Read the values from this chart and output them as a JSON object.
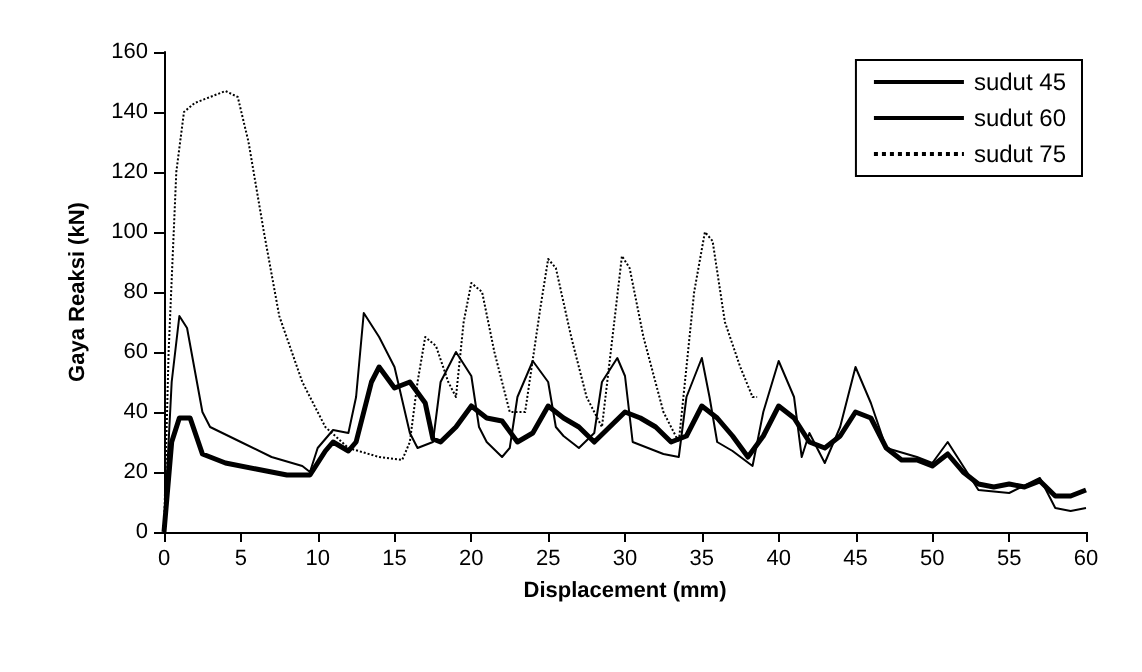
{
  "chart_data": {
    "type": "line",
    "xlabel": "Displacement (mm)",
    "ylabel": "Gaya Reaksi (kN)",
    "xlim": [
      0,
      60
    ],
    "xticks": [
      0,
      5,
      10,
      15,
      20,
      25,
      30,
      35,
      40,
      45,
      50,
      55,
      60
    ],
    "ylim": [
      0,
      160
    ],
    "yticks": [
      0,
      20,
      40,
      60,
      80,
      100,
      120,
      140,
      160
    ],
    "grid": false,
    "legend": "top right",
    "marker": "none",
    "series": [
      {
        "name": "sudut 45",
        "color": "#000000",
        "line_style": "solid",
        "x": [
          0,
          0.5,
          1,
          1.7,
          2.5,
          4,
          6,
          8,
          9.5,
          10.5,
          11,
          12,
          12.5,
          13.5,
          14,
          15,
          16,
          17,
          17.5,
          18,
          19,
          20,
          21,
          22,
          23,
          24,
          25,
          26,
          27,
          28,
          29,
          30,
          31,
          32,
          33,
          34,
          35,
          36,
          37,
          38,
          39,
          40,
          41,
          42,
          43,
          44,
          45,
          46,
          47,
          48,
          49,
          50,
          51,
          52,
          53,
          54,
          55,
          56,
          57,
          58,
          59,
          60
        ],
        "values": [
          0,
          30,
          38,
          38,
          26,
          23,
          21,
          19,
          19,
          27,
          30,
          27,
          30,
          50,
          55,
          48,
          50,
          43,
          31,
          30,
          35,
          42,
          38,
          37,
          30,
          33,
          42,
          38,
          35,
          30,
          35,
          40,
          38,
          35,
          30,
          32,
          42,
          38,
          32,
          25,
          32,
          42,
          38,
          30,
          28,
          32,
          40,
          38,
          28,
          24,
          24,
          22,
          26,
          20,
          16,
          15,
          16,
          15,
          17,
          12,
          12,
          14
        ]
      },
      {
        "name": "sudut 60",
        "color": "#000000",
        "line_style": "solid",
        "x": [
          0,
          0.5,
          1,
          1.5,
          2.5,
          3,
          5,
          7,
          9,
          9.5,
          10,
          11,
          12,
          12.5,
          13,
          14,
          15,
          16,
          16.5,
          17.5,
          18,
          19,
          20,
          20.5,
          21,
          22,
          22.5,
          23,
          24,
          25,
          25.5,
          26,
          27,
          28,
          28.5,
          29.5,
          30,
          30.5,
          31.5,
          32.5,
          33.5,
          34,
          35,
          35.5,
          36,
          37,
          38.3,
          39,
          40,
          41,
          41.5,
          42,
          43,
          44,
          45,
          46,
          47,
          49,
          50,
          51,
          52,
          53,
          55,
          57,
          58,
          59,
          60
        ],
        "values": [
          0,
          50,
          72,
          68,
          40,
          35,
          30,
          25,
          22,
          20,
          28,
          34,
          33,
          45,
          73,
          65,
          55,
          33,
          28,
          30,
          50,
          60,
          52,
          35,
          30,
          25,
          28,
          45,
          57,
          50,
          35,
          32,
          28,
          33,
          50,
          58,
          52,
          30,
          28,
          26,
          25,
          45,
          58,
          45,
          30,
          27,
          22,
          40,
          57,
          45,
          25,
          33,
          23,
          35,
          55,
          43,
          28,
          25,
          23,
          30,
          22,
          14,
          13,
          18,
          8,
          7,
          8
        ]
      },
      {
        "name": "sudut 75",
        "color": "#000000",
        "line_style": "dotted",
        "x": [
          0,
          0.3,
          0.8,
          1.3,
          2,
          4,
          4.8,
          5.5,
          6.5,
          7.5,
          9,
          10.5,
          12,
          14,
          15.5,
          16,
          16.5,
          17,
          17.7,
          18.5,
          19,
          19.5,
          20,
          20.7,
          21.5,
          22.5,
          23.5,
          24.5,
          25,
          25.5,
          26.5,
          27.5,
          28.5,
          29.3,
          29.8,
          30.3,
          31.2,
          32.5,
          33.5,
          34.5,
          35.2,
          35.7,
          36.5,
          37.5,
          38.3,
          38.6
        ],
        "values": [
          0,
          60,
          120,
          140,
          143,
          147,
          145,
          130,
          100,
          72,
          50,
          35,
          28,
          25,
          24,
          30,
          50,
          65,
          62,
          50,
          45,
          70,
          83,
          80,
          60,
          40,
          40,
          75,
          91,
          88,
          65,
          45,
          35,
          70,
          92,
          88,
          65,
          40,
          30,
          80,
          100,
          97,
          70,
          55,
          45,
          45
        ]
      }
    ]
  }
}
